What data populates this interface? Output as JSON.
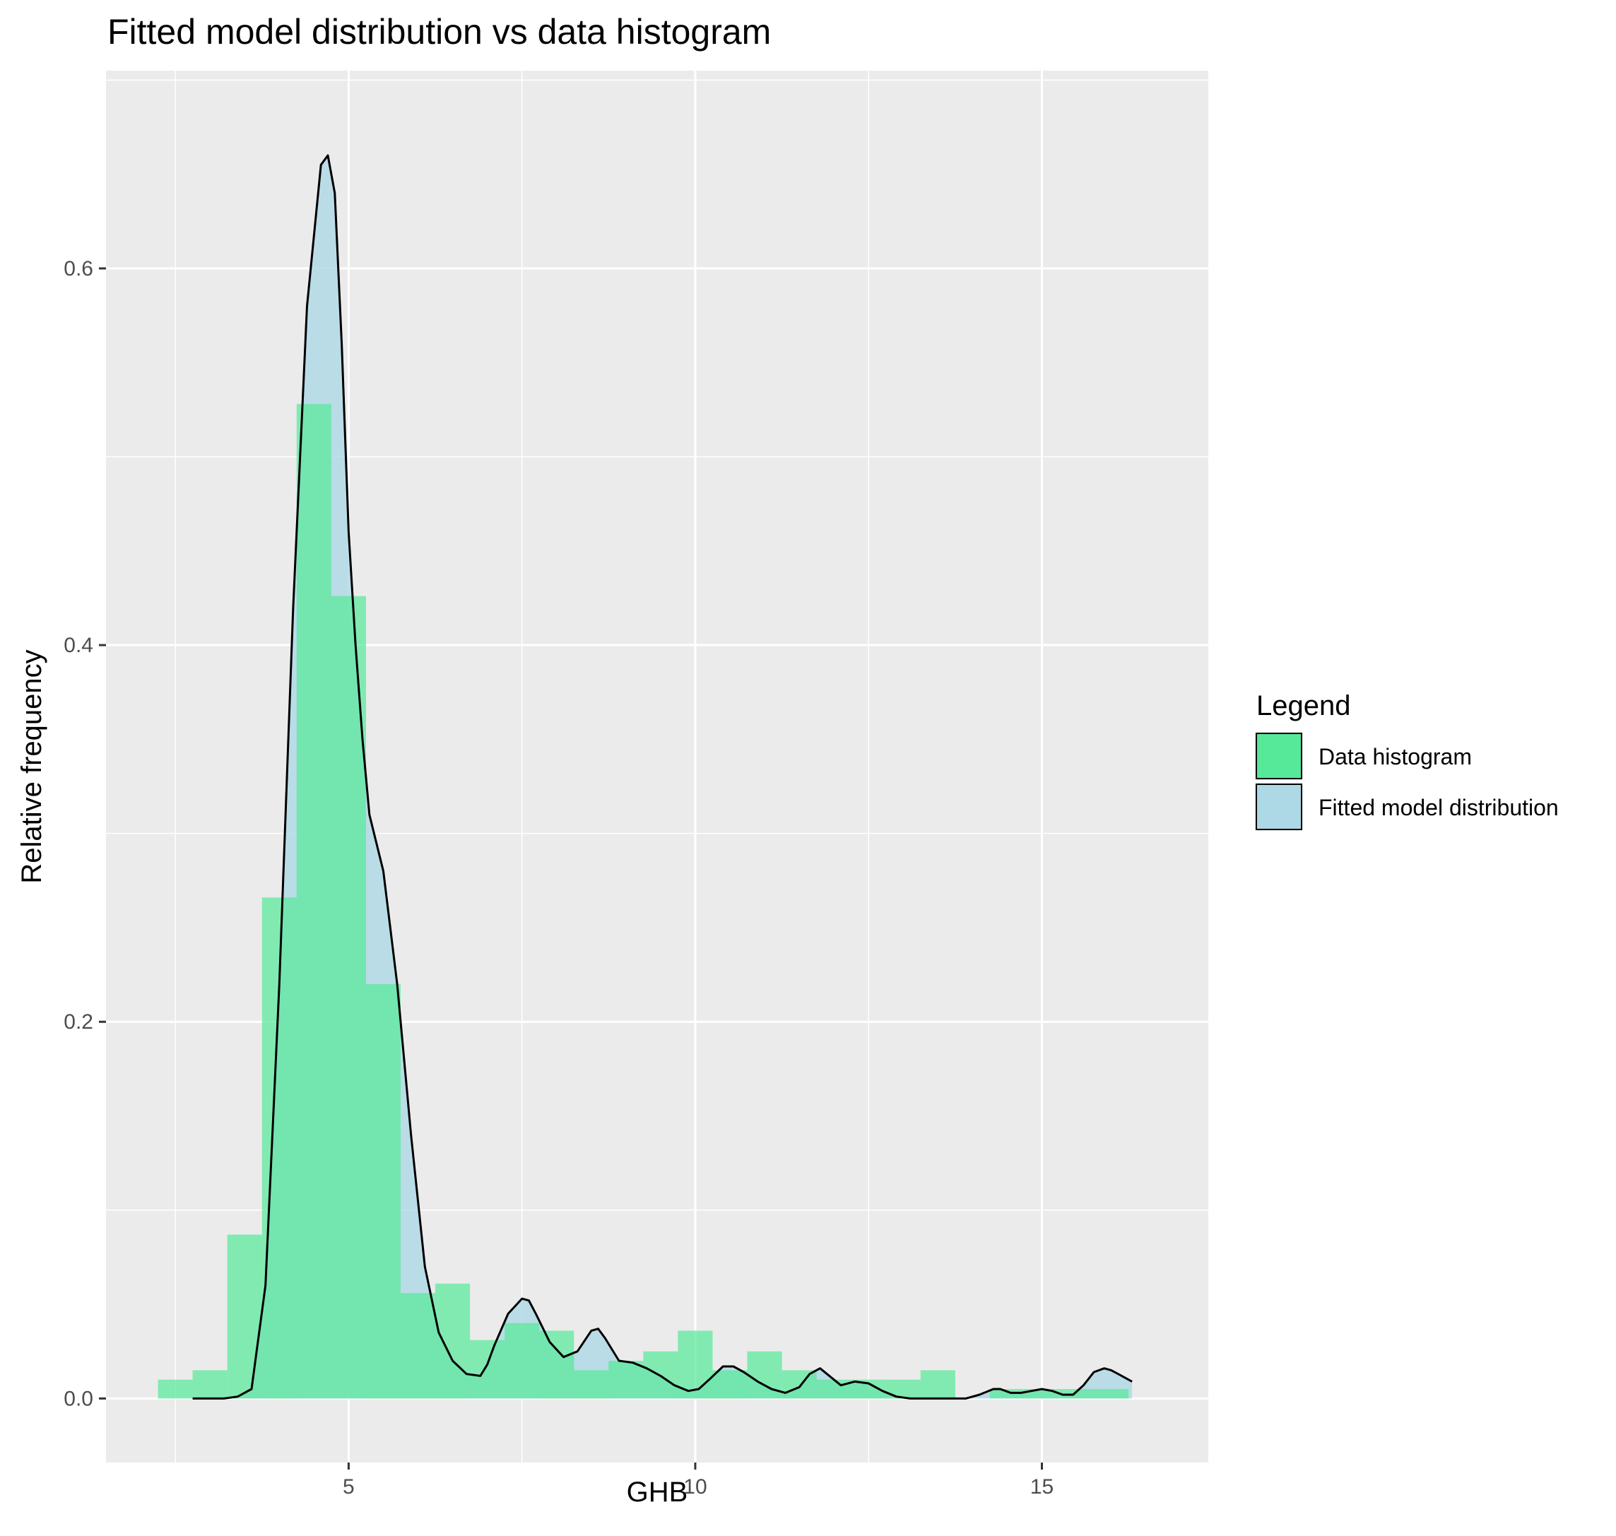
{
  "chart_data": {
    "type": "bar",
    "title": "Fitted model distribution vs data histogram",
    "xlabel": "GHB",
    "ylabel": "Relative frequency",
    "xlim": [
      1.5,
      17.4
    ],
    "ylim": [
      -0.034,
      0.705
    ],
    "x_ticks": [
      5,
      10,
      15
    ],
    "x_tick_labels": [
      "5",
      "10",
      "15"
    ],
    "y_ticks": [
      0.0,
      0.2,
      0.4,
      0.6
    ],
    "y_tick_labels": [
      "0.0",
      "0.2",
      "0.4",
      "0.6"
    ],
    "grid": true,
    "legend": {
      "title": "Legend",
      "position": "right",
      "entries": [
        {
          "label": "Data histogram",
          "color": "#57e99a"
        },
        {
          "label": "Fitted model distribution",
          "color": "#add8e6"
        }
      ]
    },
    "series": [
      {
        "name": "Data histogram",
        "type": "histogram",
        "color": "#57e99a",
        "bin_width": 0.5,
        "bins": [
          {
            "x0": 2.25,
            "x1": 2.75,
            "value": 0.01
          },
          {
            "x0": 2.75,
            "x1": 3.25,
            "value": 0.015
          },
          {
            "x0": 3.25,
            "x1": 3.75,
            "value": 0.087
          },
          {
            "x0": 3.75,
            "x1": 4.25,
            "value": 0.266
          },
          {
            "x0": 4.25,
            "x1": 4.75,
            "value": 0.528
          },
          {
            "x0": 4.75,
            "x1": 5.25,
            "value": 0.426
          },
          {
            "x0": 5.25,
            "x1": 5.75,
            "value": 0.22
          },
          {
            "x0": 5.75,
            "x1": 6.25,
            "value": 0.056
          },
          {
            "x0": 6.25,
            "x1": 6.75,
            "value": 0.061
          },
          {
            "x0": 6.75,
            "x1": 7.25,
            "value": 0.031
          },
          {
            "x0": 7.25,
            "x1": 7.75,
            "value": 0.04
          },
          {
            "x0": 7.75,
            "x1": 8.25,
            "value": 0.036
          },
          {
            "x0": 8.25,
            "x1": 8.75,
            "value": 0.015
          },
          {
            "x0": 8.75,
            "x1": 9.25,
            "value": 0.02
          },
          {
            "x0": 9.25,
            "x1": 9.75,
            "value": 0.025
          },
          {
            "x0": 9.75,
            "x1": 10.25,
            "value": 0.036
          },
          {
            "x0": 10.25,
            "x1": 10.75,
            "value": 0.015
          },
          {
            "x0": 10.75,
            "x1": 11.25,
            "value": 0.025
          },
          {
            "x0": 11.25,
            "x1": 11.75,
            "value": 0.015
          },
          {
            "x0": 11.75,
            "x1": 12.25,
            "value": 0.01
          },
          {
            "x0": 12.25,
            "x1": 12.75,
            "value": 0.01
          },
          {
            "x0": 12.75,
            "x1": 13.25,
            "value": 0.01
          },
          {
            "x0": 13.25,
            "x1": 13.75,
            "value": 0.015
          },
          {
            "x0": 13.75,
            "x1": 14.25,
            "value": 0.0
          },
          {
            "x0": 14.25,
            "x1": 14.75,
            "value": 0.005
          },
          {
            "x0": 14.75,
            "x1": 15.25,
            "value": 0.005
          },
          {
            "x0": 15.25,
            "x1": 15.75,
            "value": 0.005
          },
          {
            "x0": 15.75,
            "x1": 16.25,
            "value": 0.005
          }
        ]
      },
      {
        "name": "Fitted model distribution",
        "type": "area",
        "color": "#add8e6",
        "line_color": "#000000",
        "x": [
          2.75,
          3.0,
          3.2,
          3.4,
          3.6,
          3.8,
          4.0,
          4.2,
          4.4,
          4.6,
          4.7,
          4.8,
          4.9,
          5.0,
          5.1,
          5.2,
          5.3,
          5.5,
          5.7,
          5.9,
          6.1,
          6.3,
          6.5,
          6.7,
          6.9,
          7.0,
          7.1,
          7.3,
          7.5,
          7.6,
          7.7,
          7.9,
          8.1,
          8.3,
          8.5,
          8.6,
          8.7,
          8.9,
          9.1,
          9.3,
          9.5,
          9.7,
          9.9,
          10.05,
          10.2,
          10.4,
          10.55,
          10.7,
          10.9,
          11.1,
          11.3,
          11.5,
          11.65,
          11.8,
          11.9,
          12.1,
          12.3,
          12.5,
          12.7,
          12.9,
          13.1,
          13.3,
          13.5,
          13.7,
          13.9,
          14.1,
          14.3,
          14.4,
          14.55,
          14.7,
          14.85,
          15.0,
          15.15,
          15.3,
          15.45,
          15.6,
          15.75,
          15.9,
          16.0,
          16.1,
          16.3
        ],
        "y": [
          0.0,
          0.0,
          0.0,
          0.001,
          0.005,
          0.06,
          0.22,
          0.42,
          0.58,
          0.655,
          0.66,
          0.64,
          0.56,
          0.46,
          0.4,
          0.35,
          0.31,
          0.28,
          0.22,
          0.14,
          0.07,
          0.035,
          0.02,
          0.013,
          0.012,
          0.018,
          0.028,
          0.045,
          0.053,
          0.052,
          0.045,
          0.03,
          0.022,
          0.025,
          0.036,
          0.037,
          0.032,
          0.02,
          0.019,
          0.016,
          0.012,
          0.007,
          0.004,
          0.005,
          0.01,
          0.017,
          0.017,
          0.014,
          0.009,
          0.005,
          0.003,
          0.006,
          0.013,
          0.016,
          0.013,
          0.007,
          0.009,
          0.008,
          0.004,
          0.001,
          0.0,
          0.0,
          0.0,
          0.0,
          0.0,
          0.002,
          0.005,
          0.005,
          0.003,
          0.003,
          0.004,
          0.005,
          0.004,
          0.002,
          0.002,
          0.007,
          0.014,
          0.016,
          0.015,
          0.013,
          0.009
        ]
      }
    ]
  }
}
